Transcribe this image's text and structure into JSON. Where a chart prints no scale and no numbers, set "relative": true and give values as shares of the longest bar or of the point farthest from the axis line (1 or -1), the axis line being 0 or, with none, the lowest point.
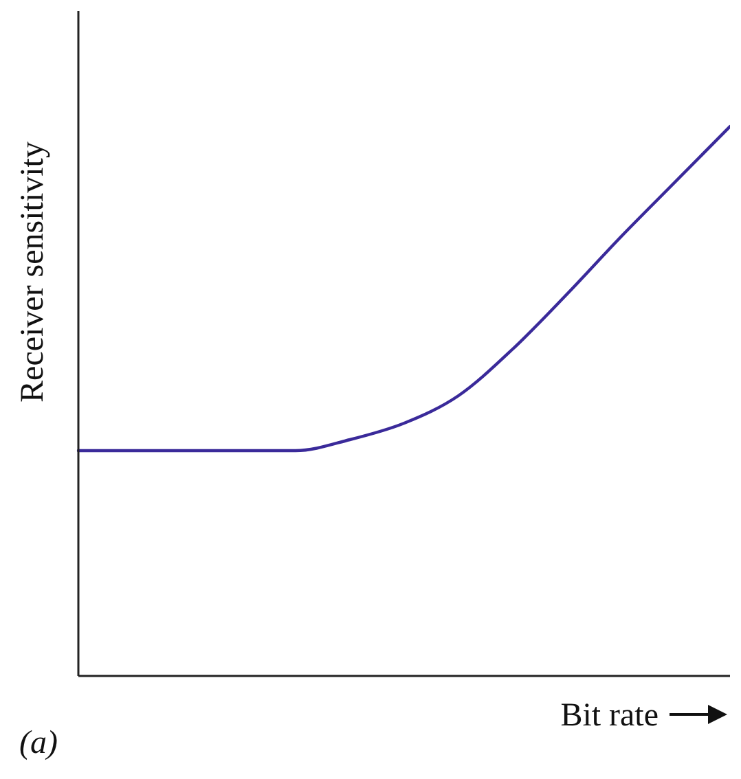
{
  "chart_data": {
    "type": "line",
    "relative": true,
    "xlabel": "Bit rate",
    "ylabel": "Receiver sensitivity",
    "annotations": [
      "(a)"
    ],
    "categories": [
      null,
      null,
      null,
      null,
      null,
      null,
      null,
      null,
      null,
      null,
      null,
      null,
      null
    ],
    "series": [
      {
        "color": "#3a2a9a",
        "values": [
          0.41,
          0.41,
          0.41,
          0.41,
          0.41,
          0.43,
          0.46,
          0.51,
          0.595,
          0.695,
          0.8,
          0.9,
          1.0
        ]
      }
    ],
    "marker": "none",
    "line_style": "solid",
    "grid": false,
    "legend": false
  }
}
